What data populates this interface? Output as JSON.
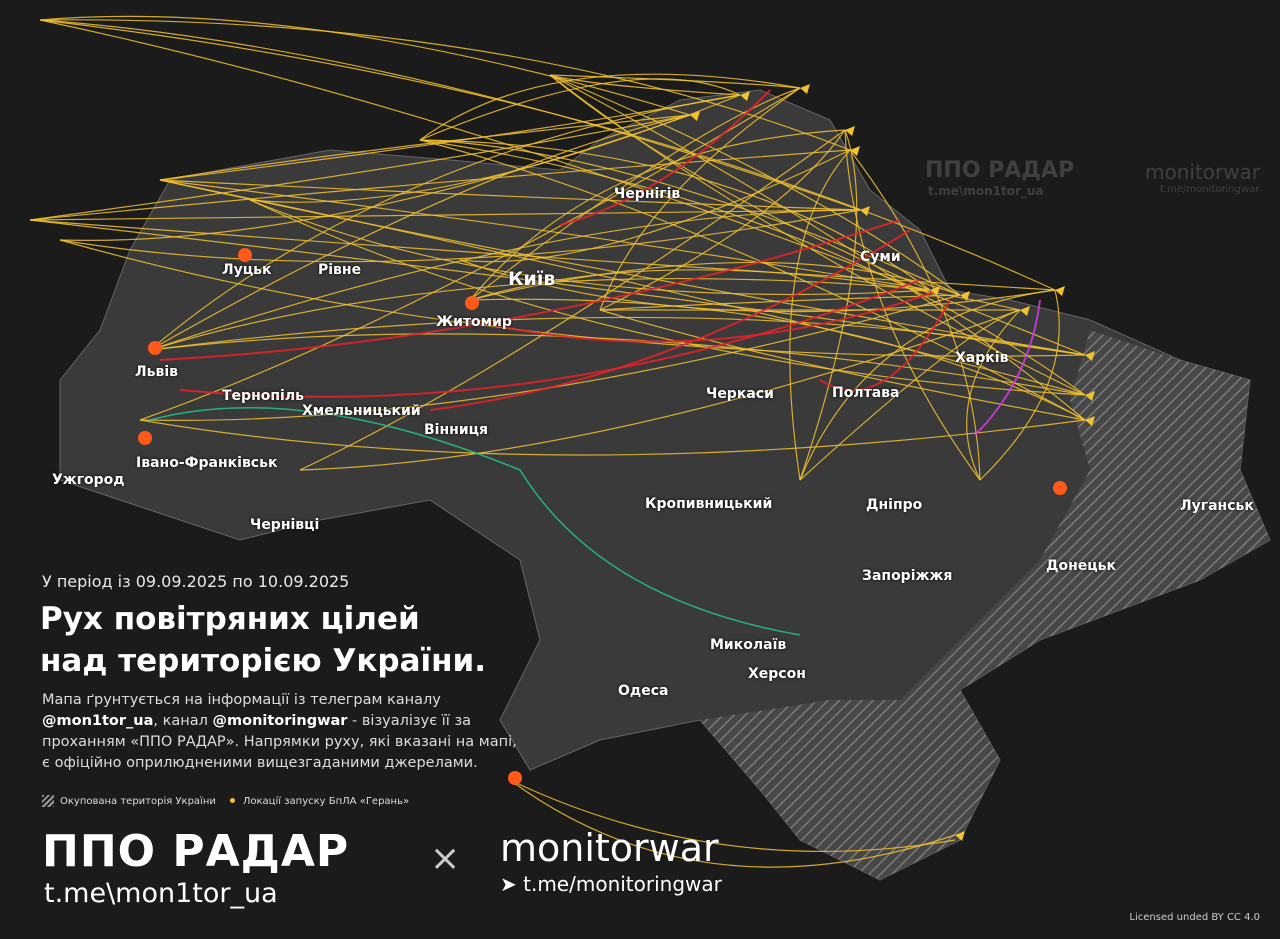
{
  "colors": {
    "background": "#1b1b1b",
    "territory": "#3a3a3a",
    "occupied_hatch": "#8a8a8a",
    "drone_route": "#f2c230",
    "missile_route": "#e8222a",
    "green_route": "#22c58a",
    "magenta_route": "#d23be0",
    "explosion": "#ff5a1a"
  },
  "watermarks": {
    "ppo": "ППО РАДАР",
    "ppo_link": "t.me\\mon1tor_ua",
    "mw": "monitorwar",
    "mw_link": "t.me/monitoringwar"
  },
  "cities": [
    {
      "name": "Луцьк"
    },
    {
      "name": "Рівне"
    },
    {
      "name": "Київ"
    },
    {
      "name": "Житомир"
    },
    {
      "name": "Львів"
    },
    {
      "name": "Тернопіль"
    },
    {
      "name": "Хмельницький"
    },
    {
      "name": "Вінниця"
    },
    {
      "name": "Івано-Франківськ"
    },
    {
      "name": "Ужгород"
    },
    {
      "name": "Чернівці"
    },
    {
      "name": "Чернігів"
    },
    {
      "name": "Суми"
    },
    {
      "name": "Харків"
    },
    {
      "name": "Полтава"
    },
    {
      "name": "Черкаси"
    },
    {
      "name": "Кропивницький"
    },
    {
      "name": "Дніпро"
    },
    {
      "name": "Запоріжжя"
    },
    {
      "name": "Донецьк"
    },
    {
      "name": "Луганськ"
    },
    {
      "name": "Миколаїв"
    },
    {
      "name": "Херсон"
    },
    {
      "name": "Одеса"
    }
  ],
  "info": {
    "period": "У період із 09.09.2025 по 10.09.2025",
    "title_line1": "Рух повітряних цілей",
    "title_line2": "над територією України.",
    "desc_1": "Мапа ґрунтується на інформації із телеграм каналу",
    "desc_handle1": "@mon1tor_ua",
    "desc_2": ", канал ",
    "desc_handle2": "@monitoringwar",
    "desc_3": " - візуалізує її за проханням «ППО РАДАР». Напрямки руху, які вказані на мапі, є офіційно оприлюдненими вищезгаданими джерелами."
  },
  "legend": {
    "occupied": "Окупована територія України",
    "launch": "Локації запуску БпЛА «Герань»"
  },
  "footer": {
    "logo1": "ППО РАДАР",
    "logo1_link": "t.me\\mon1tor_ua",
    "times": "×",
    "logo2": "monitorwar",
    "logo2_link": "t.me/monitoringwar",
    "license": "Licensed unded BY CC 4.0"
  }
}
